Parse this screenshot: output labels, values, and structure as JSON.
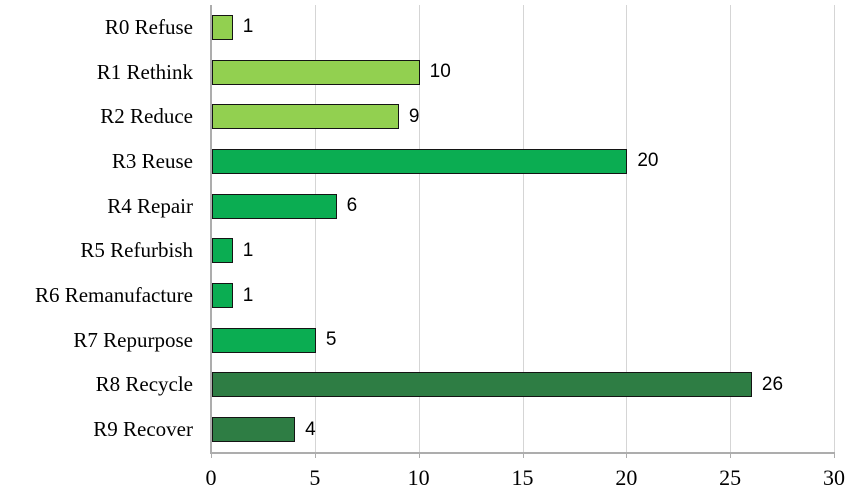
{
  "chart_data": {
    "type": "bar",
    "orientation": "horizontal",
    "categories": [
      "R0 Refuse",
      "R1 Rethink",
      "R2 Reduce",
      "R3 Reuse",
      "R4 Repair",
      "R5 Refurbish",
      "R6 Remanufacture",
      "R7 Repurpose",
      "R8 Recycle",
      "R9 Recover"
    ],
    "values": [
      1,
      10,
      9,
      20,
      6,
      1,
      1,
      5,
      26,
      4
    ],
    "data_labels": [
      "1",
      "10",
      "9",
      "20",
      "6",
      "1",
      "1",
      "5",
      "26",
      "4"
    ],
    "x_ticks": [
      0,
      5,
      10,
      15,
      20,
      25,
      30
    ],
    "x_tick_labels": [
      "0",
      "5",
      "10",
      "15",
      "20",
      "25",
      "30"
    ],
    "xlim": [
      0,
      30
    ],
    "grid": true,
    "legend": "none",
    "bar_colors": [
      "#92D050",
      "#92D050",
      "#92D050",
      "#0BAD52",
      "#0BAD52",
      "#0BAD52",
      "#0BAD52",
      "#0BAD52",
      "#2E7D44",
      "#2E7D44"
    ],
    "bar_border_color": "#141414",
    "gridline_color": "#D5D5D5",
    "axis_color": "#ADADAD",
    "text_color": "#000000"
  }
}
